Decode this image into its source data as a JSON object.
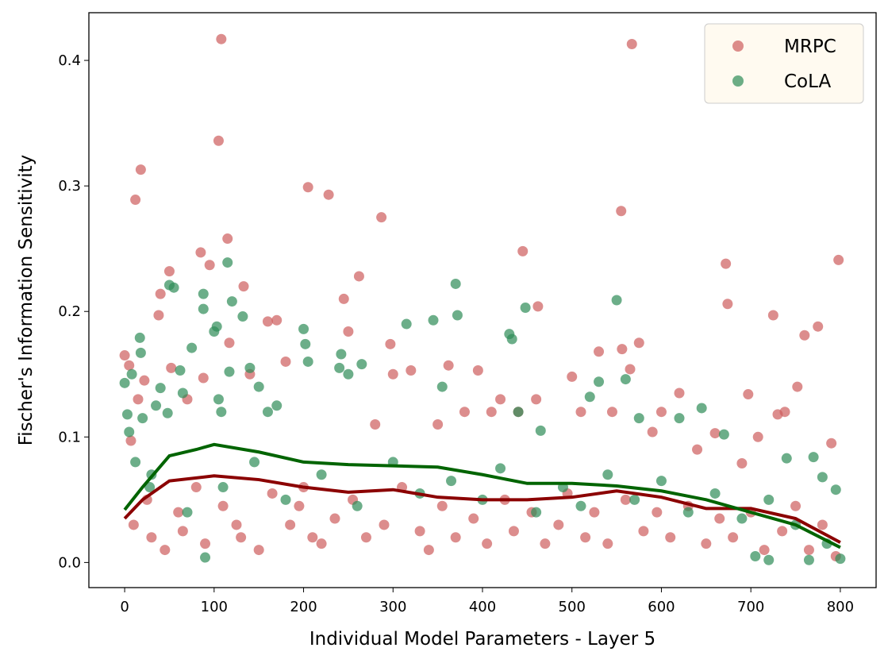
{
  "chart_data": {
    "type": "scatter",
    "xlabel": "Individual Model Parameters - Layer 5",
    "ylabel": "Fischer's Information Sensitivity",
    "xlim": [
      -40,
      840
    ],
    "ylim": [
      -0.02,
      0.438
    ],
    "xticks": [
      0,
      100,
      200,
      300,
      400,
      500,
      600,
      700,
      800
    ],
    "yticks": [
      {
        "value": 0,
        "label": "0.0"
      },
      0.1,
      0.2,
      0.3,
      0.4
    ],
    "grid": false,
    "legend": "upper right",
    "series": [
      {
        "name": "MRPC",
        "color": "#cd5c5c",
        "x": [
          0,
          5,
          7,
          12,
          15,
          18,
          22,
          30,
          38,
          40,
          50,
          52,
          60,
          70,
          85,
          88,
          95,
          105,
          108,
          115,
          117,
          125,
          133,
          140,
          160,
          170,
          180,
          200,
          205,
          210,
          228,
          245,
          250,
          262,
          280,
          287,
          297,
          300,
          320,
          350,
          362,
          380,
          395,
          410,
          420,
          440,
          445,
          460,
          462,
          500,
          510,
          530,
          545,
          555,
          556,
          565,
          567,
          575,
          590,
          600,
          620,
          640,
          660,
          672,
          674,
          690,
          697,
          708,
          725,
          730,
          738,
          752,
          760,
          775,
          790,
          798,
          10,
          25,
          45,
          65,
          80,
          90,
          110,
          130,
          150,
          165,
          185,
          195,
          220,
          235,
          255,
          270,
          290,
          310,
          330,
          340,
          355,
          370,
          390,
          405,
          425,
          435,
          455,
          470,
          485,
          495,
          515,
          525,
          540,
          560,
          580,
          595,
          610,
          630,
          650,
          665,
          680,
          700,
          715,
          735,
          750,
          765,
          780,
          795
        ],
        "values": [
          0.165,
          0.157,
          0.097,
          0.289,
          0.13,
          0.313,
          0.145,
          0.02,
          0.197,
          0.214,
          0.232,
          0.155,
          0.04,
          0.13,
          0.247,
          0.147,
          0.237,
          0.336,
          0.417,
          0.258,
          0.175,
          0.03,
          0.22,
          0.15,
          0.192,
          0.193,
          0.16,
          0.06,
          0.299,
          0.02,
          0.293,
          0.21,
          0.184,
          0.228,
          0.11,
          0.275,
          0.174,
          0.15,
          0.153,
          0.11,
          0.157,
          0.12,
          0.153,
          0.12,
          0.13,
          0.12,
          0.248,
          0.13,
          0.204,
          0.148,
          0.12,
          0.168,
          0.12,
          0.28,
          0.17,
          0.154,
          0.413,
          0.175,
          0.104,
          0.12,
          0.135,
          0.09,
          0.103,
          0.238,
          0.206,
          0.079,
          0.134,
          0.1,
          0.197,
          0.118,
          0.12,
          0.14,
          0.181,
          0.188,
          0.095,
          0.241,
          0.03,
          0.05,
          0.01,
          0.025,
          0.06,
          0.015,
          0.045,
          0.02,
          0.01,
          0.055,
          0.03,
          0.045,
          0.015,
          0.035,
          0.05,
          0.02,
          0.03,
          0.06,
          0.025,
          0.01,
          0.045,
          0.02,
          0.035,
          0.015,
          0.05,
          0.025,
          0.04,
          0.015,
          0.03,
          0.055,
          0.02,
          0.04,
          0.015,
          0.05,
          0.025,
          0.04,
          0.02,
          0.045,
          0.015,
          0.035,
          0.02,
          0.04,
          0.01,
          0.025,
          0.045,
          0.01,
          0.03,
          0.005
        ]
      },
      {
        "name": "CoLA",
        "color": "#2e8b57",
        "x": [
          0,
          3,
          5,
          8,
          12,
          17,
          18,
          20,
          28,
          35,
          40,
          48,
          50,
          55,
          62,
          65,
          75,
          88,
          88,
          90,
          100,
          103,
          105,
          108,
          115,
          117,
          120,
          132,
          140,
          150,
          160,
          170,
          200,
          202,
          205,
          240,
          242,
          250,
          265,
          315,
          345,
          355,
          370,
          372,
          430,
          433,
          440,
          448,
          465,
          520,
          530,
          550,
          560,
          575,
          620,
          645,
          670,
          705,
          720,
          740,
          765,
          770,
          780,
          795,
          800,
          30,
          70,
          110,
          145,
          180,
          220,
          260,
          300,
          330,
          365,
          400,
          420,
          460,
          490,
          510,
          540,
          570,
          600,
          630,
          660,
          690,
          720,
          750,
          785
        ],
        "values": [
          0.143,
          0.118,
          0.104,
          0.15,
          0.08,
          0.179,
          0.167,
          0.115,
          0.06,
          0.125,
          0.139,
          0.119,
          0.221,
          0.219,
          0.153,
          0.135,
          0.171,
          0.214,
          0.202,
          0.004,
          0.184,
          0.188,
          0.13,
          0.12,
          0.239,
          0.152,
          0.208,
          0.196,
          0.155,
          0.14,
          0.12,
          0.125,
          0.186,
          0.174,
          0.16,
          0.155,
          0.166,
          0.15,
          0.158,
          0.19,
          0.193,
          0.14,
          0.222,
          0.197,
          0.182,
          0.178,
          0.12,
          0.203,
          0.105,
          0.132,
          0.144,
          0.209,
          0.146,
          0.115,
          0.115,
          0.123,
          0.102,
          0.005,
          0.002,
          0.083,
          0.002,
          0.084,
          0.068,
          0.058,
          0.003,
          0.07,
          0.04,
          0.06,
          0.08,
          0.05,
          0.07,
          0.045,
          0.08,
          0.055,
          0.065,
          0.05,
          0.075,
          0.04,
          0.06,
          0.045,
          0.07,
          0.05,
          0.065,
          0.04,
          0.055,
          0.035,
          0.05,
          0.03,
          0.015
        ]
      }
    ],
    "trend_lines": [
      {
        "color": "#8b0000",
        "x": [
          0,
          20,
          50,
          100,
          150,
          200,
          250,
          300,
          350,
          400,
          450,
          500,
          550,
          600,
          650,
          700,
          750,
          800
        ],
        "values": [
          0.035,
          0.05,
          0.065,
          0.069,
          0.066,
          0.06,
          0.056,
          0.058,
          0.052,
          0.05,
          0.05,
          0.052,
          0.057,
          0.052,
          0.043,
          0.043,
          0.035,
          0.016
        ]
      },
      {
        "color": "#006400",
        "x": [
          0,
          20,
          50,
          80,
          100,
          150,
          200,
          250,
          300,
          350,
          400,
          450,
          500,
          550,
          600,
          650,
          700,
          750,
          800
        ],
        "values": [
          0.042,
          0.06,
          0.085,
          0.09,
          0.094,
          0.088,
          0.08,
          0.078,
          0.077,
          0.076,
          0.07,
          0.063,
          0.063,
          0.061,
          0.057,
          0.05,
          0.04,
          0.03,
          0.012
        ]
      }
    ]
  }
}
